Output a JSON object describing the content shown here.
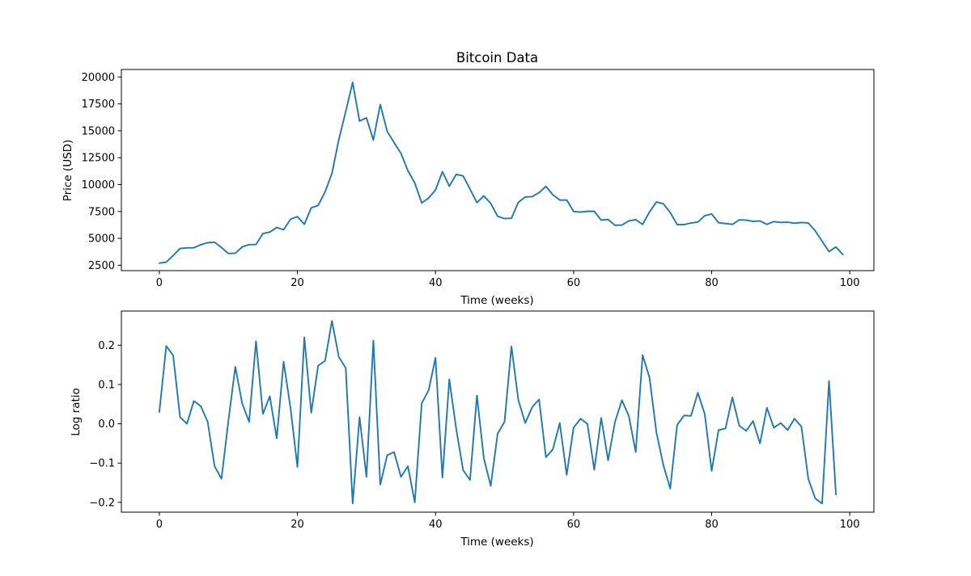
{
  "chart_data": [
    {
      "type": "line",
      "title": "Bitcoin Data",
      "xlabel": "Time (weeks)",
      "ylabel": "Price (USD)",
      "xlim": [
        -5.5,
        103.5
      ],
      "ylim": [
        2000,
        20700
      ],
      "xticks": [
        0,
        20,
        40,
        60,
        80,
        100
      ],
      "yticks": [
        2500,
        5000,
        7500,
        10000,
        12500,
        15000,
        17500,
        20000
      ],
      "grid": false,
      "color": "#1f77b4",
      "series": [
        {
          "x": [
            0,
            1,
            2,
            3,
            4,
            5,
            6,
            7,
            8,
            9,
            10,
            11,
            12,
            13,
            14,
            15,
            16,
            17,
            18,
            19,
            20,
            21,
            22,
            23,
            24,
            25,
            26,
            27,
            28,
            29,
            30,
            31,
            32,
            33,
            34,
            35,
            36,
            37,
            38,
            39,
            40,
            41,
            42,
            43,
            44,
            45,
            46,
            47,
            48,
            49,
            50,
            51,
            52,
            53,
            54,
            55,
            56,
            57,
            58,
            59,
            60,
            61,
            62,
            63,
            64,
            65,
            66,
            67,
            68,
            69,
            70,
            71,
            72,
            73,
            74,
            75,
            76,
            77,
            78,
            79,
            80,
            81,
            82,
            83,
            84,
            85,
            86,
            87,
            88,
            89,
            90,
            91,
            92,
            93,
            94,
            95,
            96,
            97,
            98,
            99
          ],
          "values": [
            2700,
            2790,
            3400,
            4060,
            4120,
            4130,
            4400,
            4600,
            4640,
            4150,
            3590,
            3620,
            4200,
            4420,
            4430,
            5450,
            5580,
            6010,
            5800,
            6780,
            7020,
            6310,
            7840,
            8060,
            9320,
            11040,
            14200,
            16800,
            19500,
            15900,
            16200,
            14150,
            17450,
            14950,
            13900,
            12900,
            11300,
            10150,
            8290,
            8750,
            9500,
            11200,
            9850,
            10950,
            10800,
            9580,
            8320,
            8950,
            8250,
            7050,
            6840,
            6870,
            8350,
            8850,
            8880,
            9250,
            9830,
            9050,
            8560,
            8570,
            7500,
            7440,
            7520,
            7510,
            6700,
            6760,
            6210,
            6240,
            6620,
            6740,
            6300,
            7460,
            8380,
            8220,
            7400,
            6290,
            6280,
            6430,
            6520,
            7100,
            7270,
            6460,
            6380,
            6300,
            6720,
            6700,
            6580,
            6620,
            6300,
            6560,
            6480,
            6500,
            6410,
            6470,
            6430,
            5700,
            4730,
            3770,
            4200,
            3490
          ]
        }
      ]
    },
    {
      "type": "line",
      "title": "",
      "xlabel": "Time (weeks)",
      "ylabel": "Log ratio",
      "xlim": [
        -5.5,
        103.5
      ],
      "ylim": [
        -0.225,
        0.287
      ],
      "xticks": [
        0,
        20,
        40,
        60,
        80,
        100
      ],
      "yticks": [
        -0.2,
        -0.1,
        0.0,
        0.1,
        0.2
      ],
      "ytick_labels": [
        "−0.2",
        "−0.1",
        "0.0",
        "0.1",
        "0.2"
      ],
      "grid": false,
      "color": "#1f77b4",
      "series": [
        {
          "x": [
            0,
            1,
            2,
            3,
            4,
            5,
            6,
            7,
            8,
            9,
            10,
            11,
            12,
            13,
            14,
            15,
            16,
            17,
            18,
            19,
            20,
            21,
            22,
            23,
            24,
            25,
            26,
            27,
            28,
            29,
            30,
            31,
            32,
            33,
            34,
            35,
            36,
            37,
            38,
            39,
            40,
            41,
            42,
            43,
            44,
            45,
            46,
            47,
            48,
            49,
            50,
            51,
            52,
            53,
            54,
            55,
            56,
            57,
            58,
            59,
            60,
            61,
            62,
            63,
            64,
            65,
            66,
            67,
            68,
            69,
            70,
            71,
            72,
            73,
            74,
            75,
            76,
            77,
            78,
            79,
            80,
            81,
            82,
            83,
            84,
            85,
            86,
            87,
            88,
            89,
            90,
            91,
            92,
            93,
            94,
            95,
            96,
            97,
            98
          ],
          "values": [
            0.03,
            0.198,
            0.174,
            0.017,
            0.0,
            0.058,
            0.045,
            0.005,
            -0.108,
            -0.14,
            0.007,
            0.145,
            0.052,
            0.005,
            0.21,
            0.025,
            0.07,
            -0.037,
            0.158,
            0.04,
            -0.11,
            0.22,
            0.028,
            0.148,
            0.16,
            0.262,
            0.17,
            0.142,
            -0.203,
            0.017,
            -0.135,
            0.212,
            -0.155,
            -0.08,
            -0.072,
            -0.135,
            -0.108,
            -0.2,
            0.052,
            0.085,
            0.168,
            -0.137,
            0.113,
            -0.013,
            -0.118,
            -0.143,
            0.072,
            -0.088,
            -0.158,
            -0.025,
            0.005,
            0.197,
            0.06,
            0.002,
            0.042,
            0.062,
            -0.085,
            -0.065,
            0.002,
            -0.13,
            -0.01,
            0.013,
            0.0,
            -0.117,
            0.015,
            -0.093,
            0.005,
            0.06,
            0.02,
            -0.072,
            0.175,
            0.117,
            -0.022,
            -0.105,
            -0.165,
            -0.003,
            0.021,
            0.02,
            0.079,
            0.025,
            -0.12,
            -0.016,
            -0.012,
            0.067,
            -0.005,
            -0.018,
            0.007,
            -0.05,
            0.041,
            -0.01,
            0.002,
            -0.016,
            0.013,
            -0.007,
            -0.14,
            -0.19,
            -0.203,
            0.109,
            -0.18
          ]
        }
      ]
    }
  ]
}
